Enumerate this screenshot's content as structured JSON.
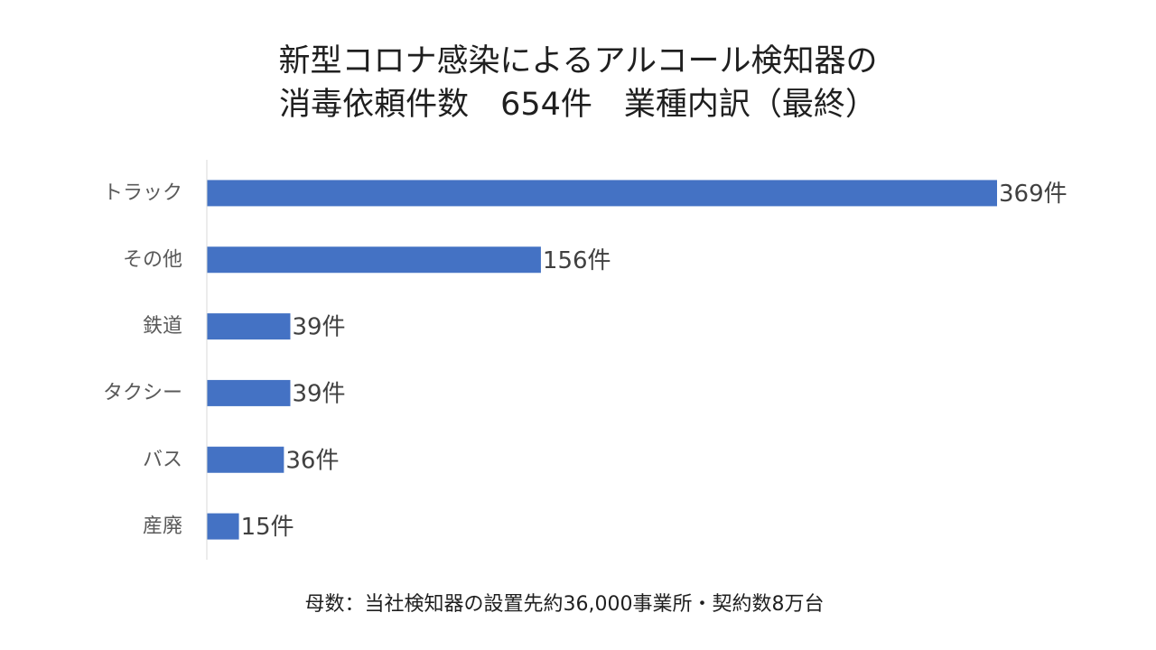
{
  "title_lines": [
    "新型コロナ感染によるアルコール検知器の",
    "消毒依頼件数　654件　業種内訳（最終）"
  ],
  "footnote": "母数：当社検知器の設置先約36,000事業所・契約数8万台",
  "colors": {
    "bar": "#4472C4",
    "axis": "#D9D9D9",
    "category_label": "#595959",
    "value_label": "#404040"
  },
  "chart_data": {
    "type": "bar",
    "orientation": "horizontal",
    "categories": [
      "トラック",
      "その他",
      "鉄道",
      "タクシー",
      "バス",
      "産廃"
    ],
    "values": [
      369,
      156,
      39,
      39,
      36,
      15
    ],
    "value_labels": [
      "369件",
      "156件",
      "39件",
      "39件",
      "36件",
      "15件"
    ],
    "xlim": [
      0,
      369
    ],
    "grid": false,
    "legend": "none"
  }
}
